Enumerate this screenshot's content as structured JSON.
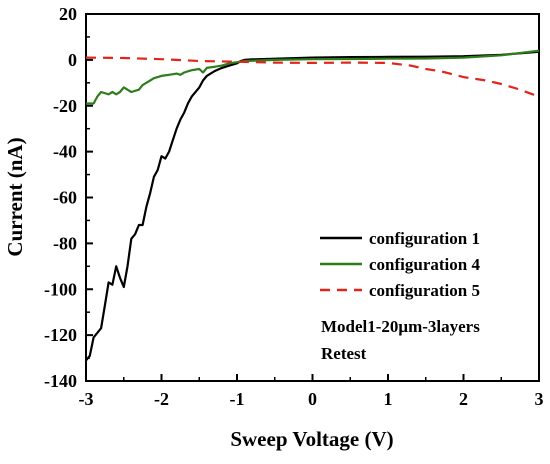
{
  "chart_data": {
    "type": "line",
    "xlabel": "Sweep Voltage (V)",
    "ylabel": "Current (nA)",
    "xlim": [
      -3,
      3
    ],
    "ylim": [
      -140,
      20
    ],
    "xticks": [
      -3,
      -2,
      -1,
      0,
      1,
      2,
      3
    ],
    "yticks": [
      20,
      0,
      -20,
      -40,
      -60,
      -80,
      -100,
      -120,
      -140
    ],
    "grid": false,
    "legend_position": "lower-right",
    "annotation": [
      "Model1-20μm-3layers",
      "Retest"
    ],
    "series": [
      {
        "name": "configuration 1",
        "color": "#000000",
        "dash": "solid",
        "points": [
          [
            -3.0,
            -131
          ],
          [
            -2.95,
            -129
          ],
          [
            -2.9,
            -121
          ],
          [
            -2.8,
            -117
          ],
          [
            -2.75,
            -107
          ],
          [
            -2.7,
            -97
          ],
          [
            -2.65,
            -98
          ],
          [
            -2.6,
            -90
          ],
          [
            -2.55,
            -95
          ],
          [
            -2.5,
            -99
          ],
          [
            -2.45,
            -90
          ],
          [
            -2.4,
            -78
          ],
          [
            -2.35,
            -76
          ],
          [
            -2.3,
            -72
          ],
          [
            -2.25,
            -72
          ],
          [
            -2.2,
            -64
          ],
          [
            -2.15,
            -58
          ],
          [
            -2.1,
            -51
          ],
          [
            -2.05,
            -48
          ],
          [
            -2.0,
            -42
          ],
          [
            -1.95,
            -43
          ],
          [
            -1.9,
            -40
          ],
          [
            -1.85,
            -35
          ],
          [
            -1.8,
            -30
          ],
          [
            -1.75,
            -26
          ],
          [
            -1.7,
            -23
          ],
          [
            -1.65,
            -19
          ],
          [
            -1.6,
            -16
          ],
          [
            -1.5,
            -12
          ],
          [
            -1.45,
            -9
          ],
          [
            -1.4,
            -7
          ],
          [
            -1.35,
            -6
          ],
          [
            -1.3,
            -5
          ],
          [
            -1.2,
            -3.5
          ],
          [
            -1.1,
            -2.5
          ],
          [
            -1.0,
            -1.5
          ],
          [
            -0.95,
            -0.5
          ],
          [
            -0.9,
            0
          ],
          [
            -0.8,
            0.2
          ],
          [
            -0.5,
            0.5
          ],
          [
            0.0,
            1
          ],
          [
            0.5,
            1.2
          ],
          [
            1.0,
            1.3
          ],
          [
            1.5,
            1.4
          ],
          [
            2.0,
            1.6
          ],
          [
            2.5,
            2.2
          ],
          [
            3.0,
            3.5
          ]
        ]
      },
      {
        "name": "configuration 4",
        "color": "#2e7d1b",
        "dash": "solid",
        "points": [
          [
            -3.0,
            -19
          ],
          [
            -2.9,
            -19
          ],
          [
            -2.85,
            -16
          ],
          [
            -2.8,
            -14
          ],
          [
            -2.7,
            -15
          ],
          [
            -2.65,
            -14
          ],
          [
            -2.6,
            -15
          ],
          [
            -2.55,
            -14
          ],
          [
            -2.5,
            -12
          ],
          [
            -2.4,
            -14
          ],
          [
            -2.3,
            -13
          ],
          [
            -2.25,
            -11
          ],
          [
            -2.2,
            -10
          ],
          [
            -2.15,
            -9
          ],
          [
            -2.1,
            -8
          ],
          [
            -2.0,
            -7
          ],
          [
            -1.9,
            -6.5
          ],
          [
            -1.8,
            -6
          ],
          [
            -1.75,
            -6.5
          ],
          [
            -1.7,
            -5.5
          ],
          [
            -1.6,
            -4.5
          ],
          [
            -1.5,
            -4
          ],
          [
            -1.45,
            -5.5
          ],
          [
            -1.4,
            -3.5
          ],
          [
            -1.3,
            -3
          ],
          [
            -1.2,
            -2.5
          ],
          [
            -1.1,
            -1.5
          ],
          [
            -1.0,
            -1
          ],
          [
            -0.9,
            -0.5
          ],
          [
            -0.5,
            0
          ],
          [
            0.0,
            0.3
          ],
          [
            0.5,
            0.4
          ],
          [
            1.0,
            0.5
          ],
          [
            1.5,
            0.6
          ],
          [
            2.0,
            1.0
          ],
          [
            2.5,
            2.0
          ],
          [
            3.0,
            4.0
          ]
        ]
      },
      {
        "name": "configuration 5",
        "color": "#e0261c",
        "dash": "dashed",
        "points": [
          [
            -3.0,
            1
          ],
          [
            -2.5,
            0.8
          ],
          [
            -2.0,
            0.3
          ],
          [
            -1.5,
            -0.5
          ],
          [
            -1.0,
            -0.8
          ],
          [
            -0.5,
            -1.2
          ],
          [
            0.0,
            -1.3
          ],
          [
            0.5,
            -1.2
          ],
          [
            1.0,
            -1.3
          ],
          [
            1.3,
            -2.5
          ],
          [
            1.5,
            -4
          ],
          [
            1.7,
            -5
          ],
          [
            2.0,
            -7.5
          ],
          [
            2.3,
            -9
          ],
          [
            2.5,
            -10.5
          ],
          [
            2.7,
            -12.5
          ],
          [
            3.0,
            -16
          ]
        ]
      }
    ]
  }
}
